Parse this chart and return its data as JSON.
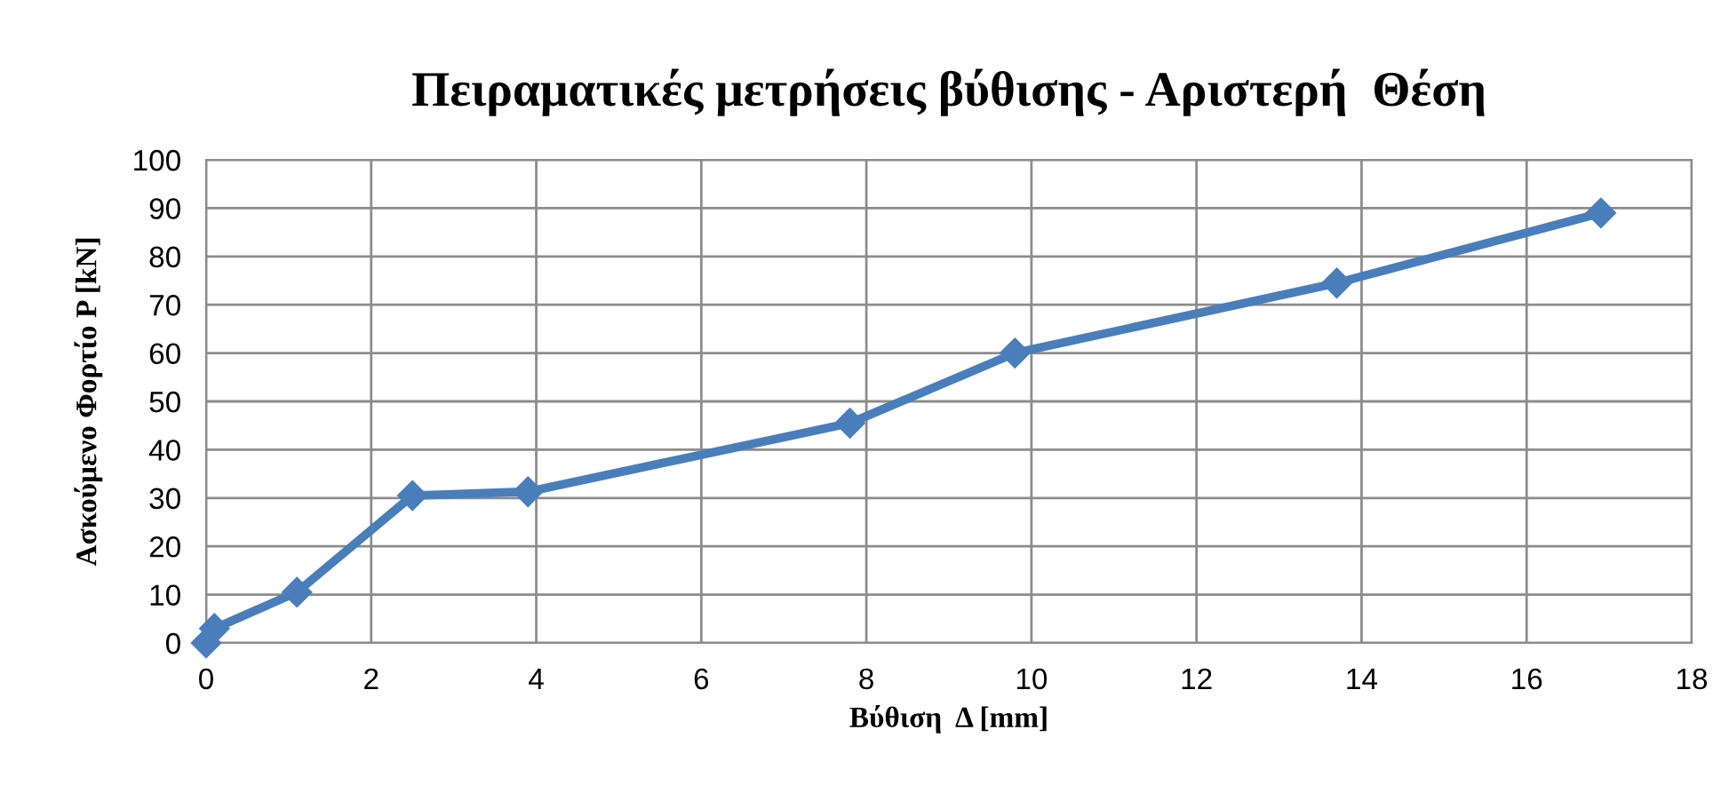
{
  "chart_data": {
    "type": "line",
    "title": "Πειραματικές μετρήσεις βύθισης - Αριστερή  Θέση",
    "xlabel": "Βύθιση  Δ [mm]",
    "ylabel": "Ασκούμενο Φορτίο P [kN]",
    "x": [
      0,
      0.1,
      1.1,
      2.5,
      3.9,
      7.8,
      9.8,
      13.7,
      16.9
    ],
    "series": [
      {
        "color": "#4a7ebb",
        "values": [
          0,
          3,
          10.5,
          30.5,
          31.3,
          45.5,
          60,
          74.5,
          89
        ]
      }
    ],
    "xlim": [
      0,
      18
    ],
    "xticks": [
      0,
      2,
      4,
      6,
      8,
      10,
      12,
      14,
      16,
      18
    ],
    "ylim": [
      0,
      100
    ],
    "yticks": [
      0,
      10,
      20,
      30,
      40,
      50,
      60,
      70,
      80,
      90,
      100
    ],
    "grid": true,
    "marker": "diamond",
    "line_style": "solid"
  }
}
